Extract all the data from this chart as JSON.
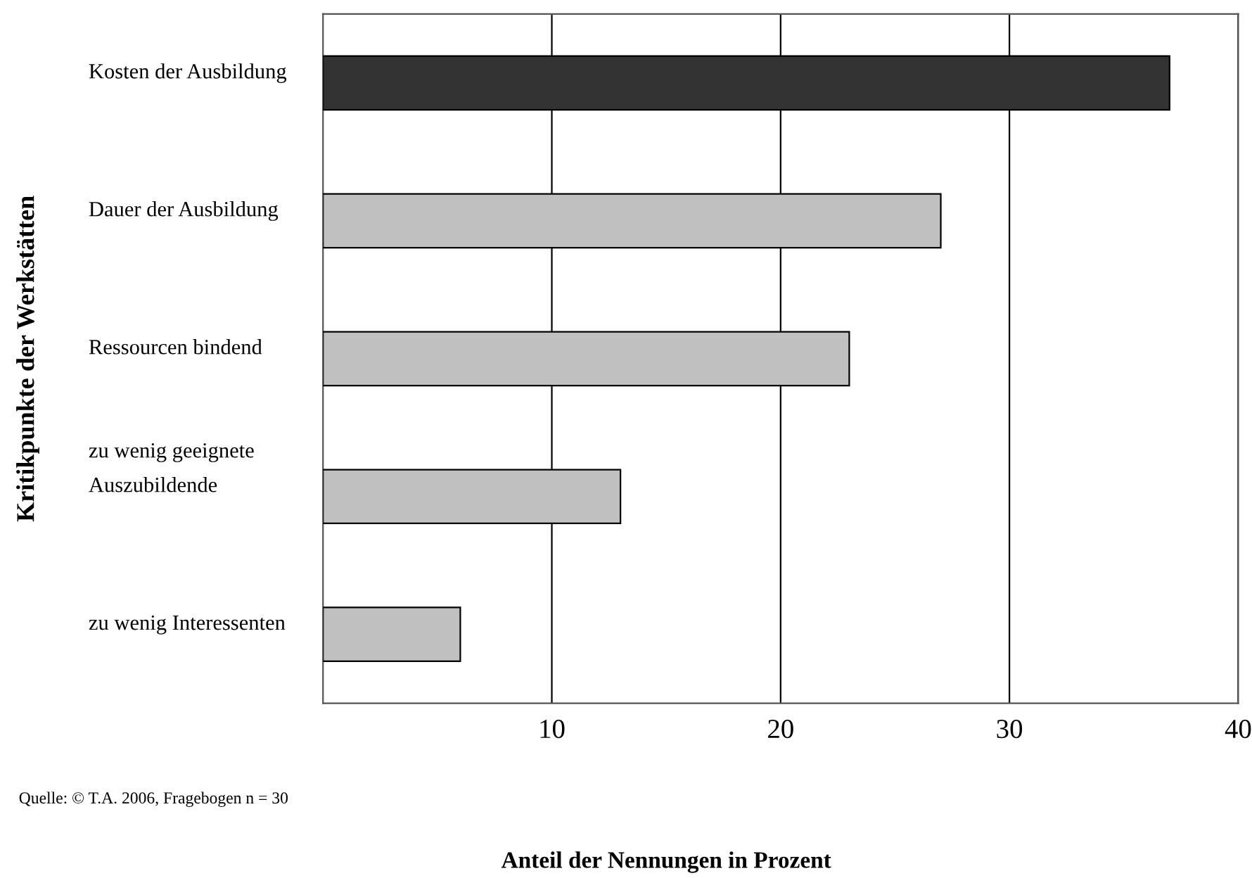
{
  "chart_data": {
    "type": "bar",
    "orientation": "horizontal",
    "categories": [
      "Kosten der Ausbildung",
      "Dauer der Ausbildung",
      "Ressourcen bindend",
      "zu wenig geeignete\nAuszubildende",
      "zu wenig Interessenten"
    ],
    "values": [
      37,
      27,
      23,
      13,
      6
    ],
    "colors": [
      "#333333",
      "#c0c0c0",
      "#c0c0c0",
      "#c0c0c0",
      "#c0c0c0"
    ],
    "xlim": [
      0,
      40
    ],
    "xticks": [
      10,
      20,
      30,
      40
    ],
    "grid": "x",
    "xlabel": "Anteil der Nennungen in Prozent",
    "ylabel": "Kritikpunkte der Werkstätten",
    "annotations": [
      "Quelle: © T.A. 2006, Fragebogen n = 30"
    ]
  }
}
